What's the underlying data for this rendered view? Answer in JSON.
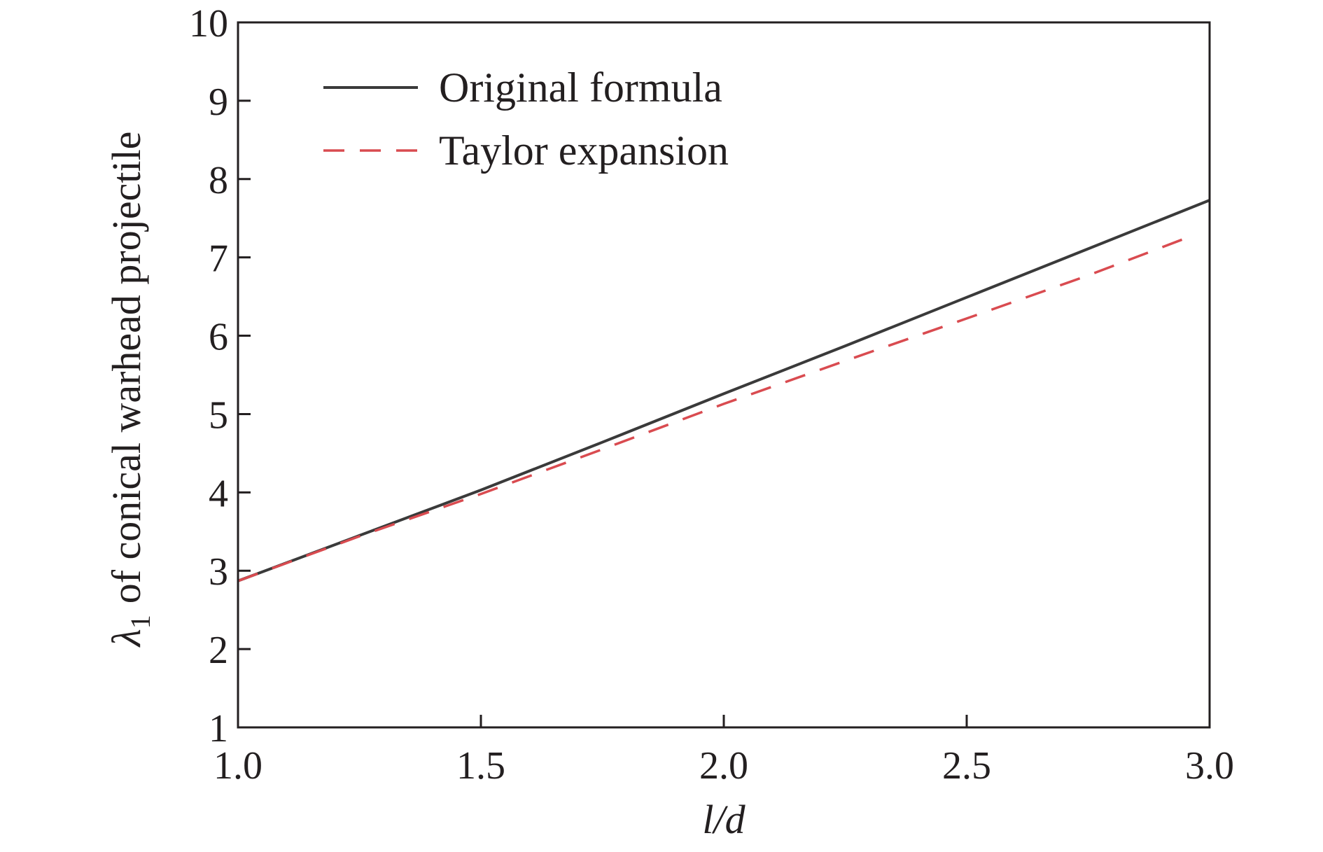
{
  "colors": {
    "original": "#3a3a3a",
    "taylor": "#d94b50",
    "axis": "#231f20",
    "background": "#ffffff"
  },
  "chart_data": {
    "type": "line",
    "xlabel": "l/d",
    "ylabel_symbol": "λ",
    "ylabel_subscript": "1",
    "ylabel_text": "of conical warhead projectile",
    "xlim": [
      1.0,
      3.0
    ],
    "ylim": [
      1,
      10
    ],
    "x_ticks": [
      "1.0",
      "1.5",
      "2.0",
      "2.5",
      "3.0"
    ],
    "y_ticks": [
      "1",
      "2",
      "3",
      "4",
      "5",
      "6",
      "7",
      "8",
      "9",
      "10"
    ],
    "x_tick_values": [
      1.0,
      1.5,
      2.0,
      2.5,
      3.0
    ],
    "y_tick_values": [
      1,
      2,
      3,
      4,
      5,
      6,
      7,
      8,
      9,
      10
    ],
    "grid": false,
    "legend_position": "top-left",
    "series": [
      {
        "name": "Original formula",
        "style": "solid",
        "x": [
          1.0,
          1.25,
          1.5,
          1.75,
          2.0,
          2.25,
          2.5,
          2.75,
          3.0
        ],
        "y": [
          2.87,
          3.45,
          4.03,
          4.64,
          5.26,
          5.87,
          6.49,
          7.11,
          7.73
        ]
      },
      {
        "name": "Taylor expansion",
        "style": "dashed",
        "x": [
          1.0,
          1.25,
          1.5,
          1.75,
          2.0,
          2.25,
          2.5,
          2.75,
          2.97
        ],
        "y": [
          2.87,
          3.44,
          3.98,
          4.55,
          5.13,
          5.68,
          6.22,
          6.77,
          7.29
        ]
      }
    ]
  }
}
